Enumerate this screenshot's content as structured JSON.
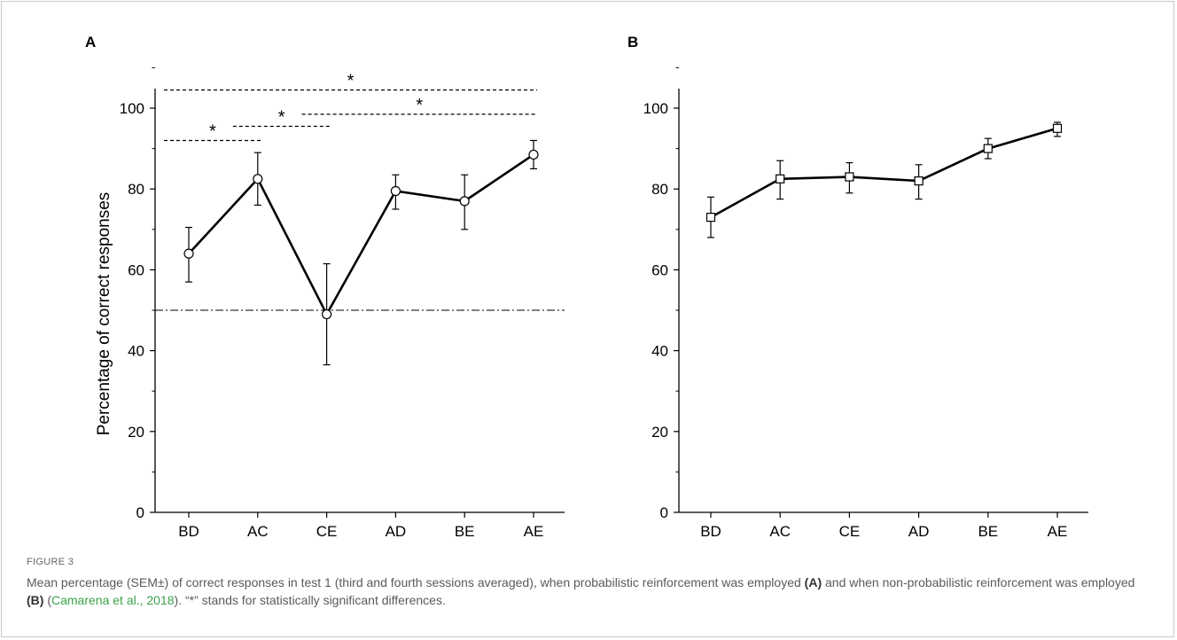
{
  "chart_data": [
    {
      "panel": "A",
      "type": "line",
      "categories": [
        "BD",
        "AC",
        "CE",
        "AD",
        "BE",
        "AE"
      ],
      "marker": "circle",
      "values": [
        64,
        82.5,
        49,
        79.5,
        77,
        88.5
      ],
      "error_upper": [
        70.5,
        89,
        61.5,
        83.5,
        83.5,
        92
      ],
      "error_lower": [
        57,
        76,
        36.5,
        75,
        70,
        85
      ],
      "ylabel": "Percentage of correct responses",
      "ylim": [
        0,
        100
      ],
      "yticks": [
        0,
        20,
        40,
        60,
        80,
        100
      ],
      "reference_line": {
        "y": 50,
        "style": "dash-dot"
      },
      "significance": [
        {
          "from": "BD",
          "to": "AC",
          "label": "*"
        },
        {
          "from": "AC",
          "to": "CE",
          "label": "*"
        },
        {
          "from": "CE",
          "to": "AE",
          "label": "*"
        },
        {
          "from": "BD",
          "to": "AE",
          "label": "*"
        }
      ]
    },
    {
      "panel": "B",
      "type": "line",
      "categories": [
        "BD",
        "AC",
        "CE",
        "AD",
        "BE",
        "AE"
      ],
      "marker": "square",
      "values": [
        73,
        82.5,
        83,
        82,
        90,
        95
      ],
      "error_upper": [
        78,
        87,
        86.5,
        86,
        92.5,
        96.5
      ],
      "error_lower": [
        68,
        77.5,
        79,
        77.5,
        87.5,
        93
      ],
      "ylim": [
        0,
        100
      ],
      "yticks": [
        0,
        20,
        40,
        60,
        80,
        100
      ]
    }
  ],
  "caption": {
    "figure_label": "FIGURE 3",
    "text_1": "Mean percentage (SEM±) of correct responses in test 1 (third and fourth sessions averaged), when probabilistic reinforcement was employed ",
    "ref_a": "(A)",
    "text_2": " and when non-probabilistic reinforcement was employed ",
    "ref_b": "(B)",
    "text_3": " (",
    "citation": "Camarena et al., 2018",
    "text_4": "). “*” stands for statistically significant differences."
  }
}
